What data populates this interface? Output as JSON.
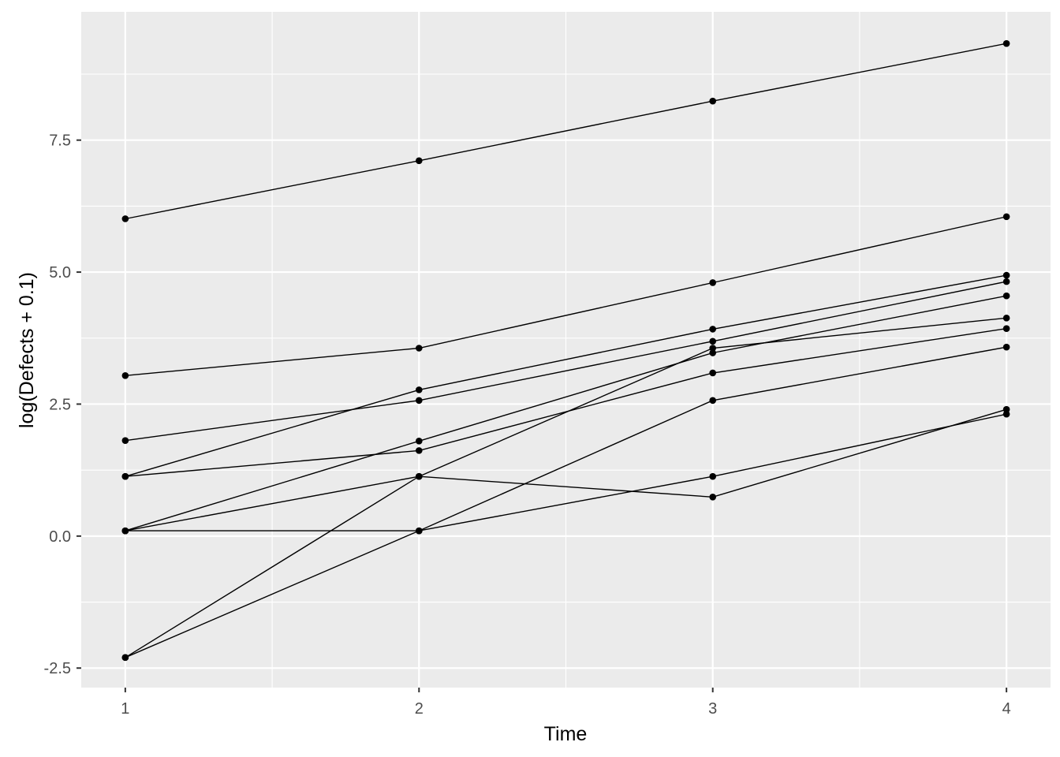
{
  "chart_data": {
    "type": "line",
    "title": "",
    "xlabel": "Time",
    "ylabel": "log(Defects + 0.1)",
    "x": [
      1,
      2,
      3,
      4
    ],
    "x_ticks": [
      "1",
      "2",
      "3",
      "4"
    ],
    "y_ticks": [
      {
        "value": -2.5,
        "label": "-2.5"
      },
      {
        "value": 0.0,
        "label": "0.0"
      },
      {
        "value": 2.5,
        "label": "2.5"
      },
      {
        "value": 5.0,
        "label": "5.0"
      },
      {
        "value": 7.5,
        "label": "7.5"
      }
    ],
    "xlim": [
      0.85,
      4.15
    ],
    "ylim": [
      -2.87,
      9.93
    ],
    "grid": true,
    "legend": "none",
    "colors": {
      "panel": "#ebebeb",
      "grid": "#ffffff",
      "line": "#000000",
      "point": "#000000",
      "tick_text": "#4d4d4d",
      "tick_mark": "#333333"
    },
    "series": [
      {
        "values": [
          6.01,
          7.11,
          8.24,
          9.33
        ]
      },
      {
        "values": [
          3.04,
          3.56,
          4.8,
          6.05
        ]
      },
      {
        "values": [
          1.13,
          2.77,
          3.92,
          4.94
        ]
      },
      {
        "values": [
          1.81,
          2.57,
          3.69,
          4.82
        ]
      },
      {
        "values": [
          0.1,
          1.8,
          3.47,
          4.55
        ]
      },
      {
        "values": [
          -2.3,
          1.13,
          3.56,
          4.13
        ]
      },
      {
        "values": [
          1.13,
          1.62,
          3.09,
          3.93
        ]
      },
      {
        "values": [
          -2.3,
          0.1,
          2.57,
          3.58
        ]
      },
      {
        "values": [
          0.1,
          1.13,
          0.74,
          2.4
        ]
      },
      {
        "values": [
          0.1,
          0.1,
          1.13,
          2.31
        ]
      }
    ]
  }
}
